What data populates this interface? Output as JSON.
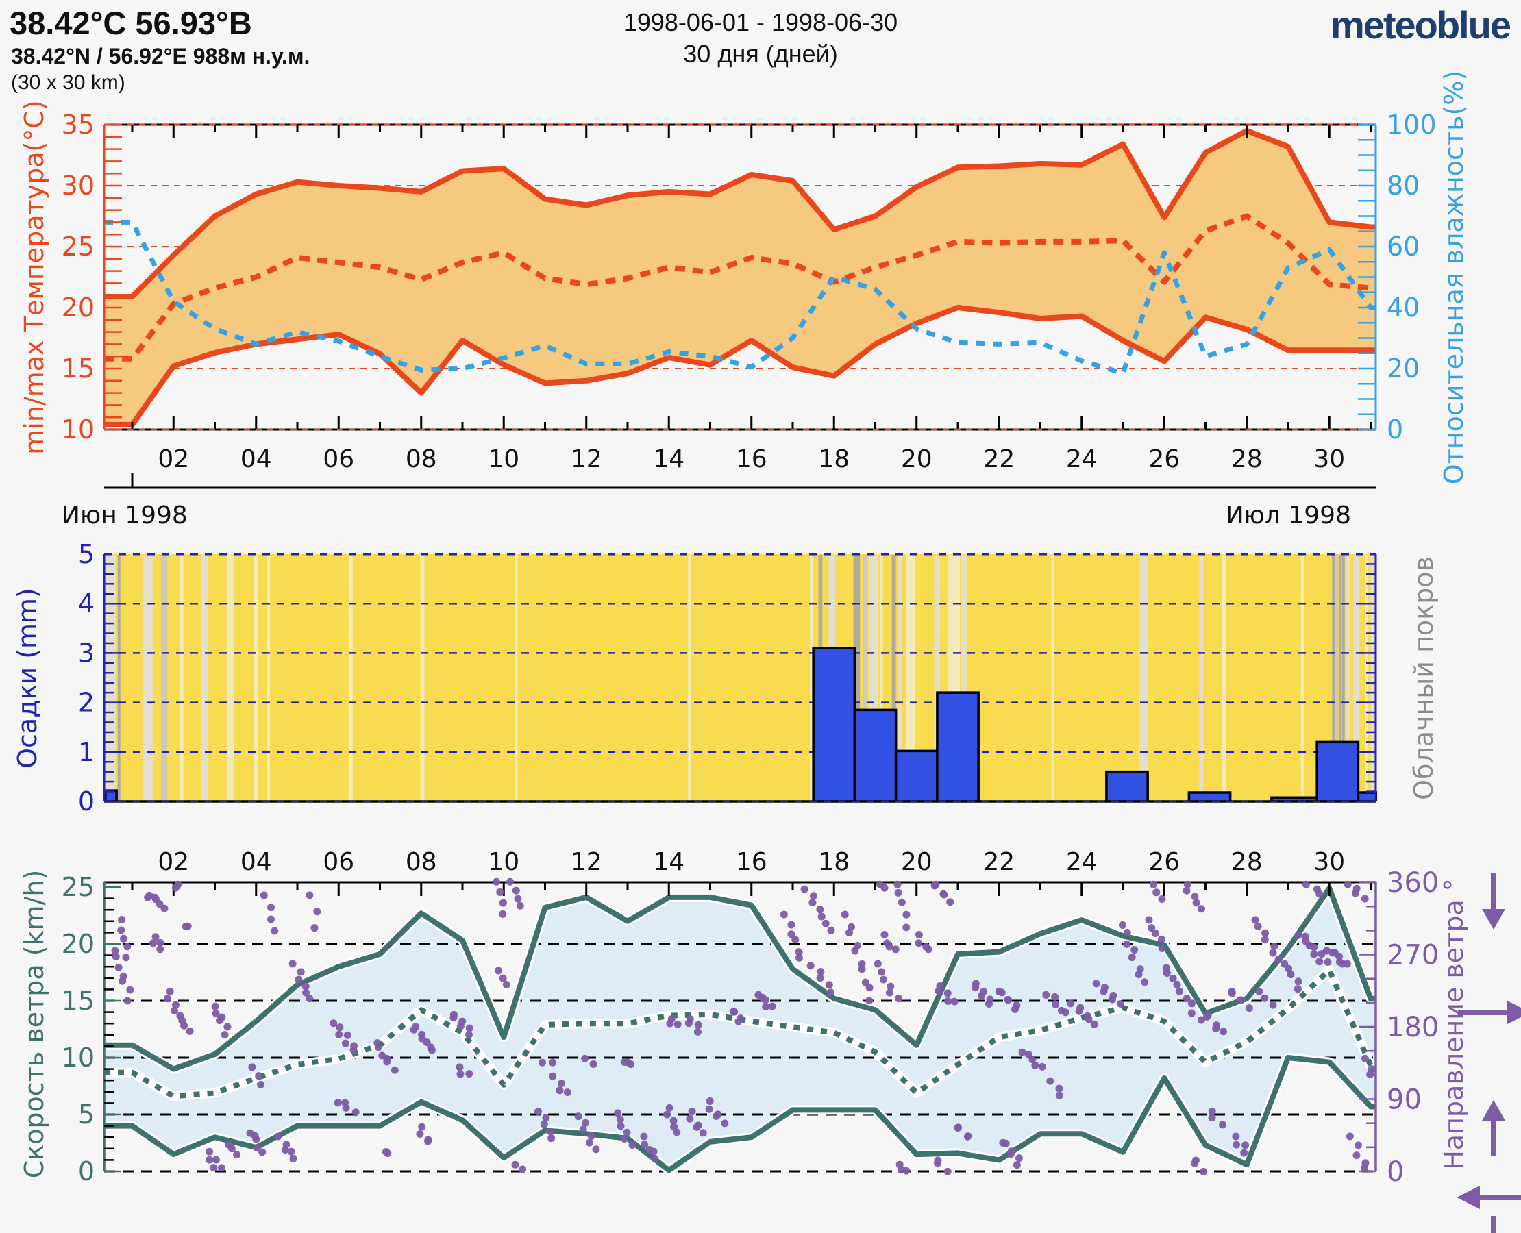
{
  "header": {
    "title": "38.42°C 56.93°B",
    "subtitle": "38.42°N / 56.92°E   988м н.у.м.",
    "grid_note": "(30 x 30 km)",
    "date_range": "1998-06-01 - 1998-06-30",
    "duration": "30 дня (дней)",
    "logo_text": "meteoblue",
    "logo_color": "#1f3e70"
  },
  "axis": {
    "day_labels": [
      "02",
      "04",
      "06",
      "08",
      "10",
      "12",
      "14",
      "16",
      "18",
      "20",
      "22",
      "24",
      "26",
      "28",
      "30"
    ],
    "month_left": "Июн 1998",
    "month_right": "Июл 1998"
  },
  "chart_data": [
    {
      "type": "area",
      "name": "temperature-humidity",
      "ylabel_left": "min/max Температура(°C)",
      "ylabel_right": "Относительная влажность(%)",
      "ylim_left": [
        10,
        35
      ],
      "ylim_right": [
        0,
        100
      ],
      "yticks_left": [
        35,
        30,
        25,
        20,
        15,
        10
      ],
      "yticks_right": [
        100,
        80,
        60,
        40,
        20,
        0
      ],
      "gridlines_left": [
        30,
        25,
        20,
        15
      ],
      "band_fill": "#f6c981",
      "temp_color": "#e8481c",
      "humidity_color": "#35a1e6",
      "days": [
        1,
        2,
        3,
        4,
        5,
        6,
        7,
        8,
        9,
        10,
        11,
        12,
        13,
        14,
        15,
        16,
        17,
        18,
        19,
        20,
        21,
        22,
        23,
        24,
        25,
        26,
        27,
        28,
        29,
        30,
        31
      ],
      "series": [
        {
          "name": "temp-max",
          "style": "solid",
          "axis": "left",
          "values": [
            20.9,
            24.3,
            27.5,
            29.3,
            30.3,
            30.0,
            29.8,
            29.5,
            31.2,
            31.4,
            28.9,
            28.4,
            29.2,
            29.5,
            29.3,
            30.9,
            30.4,
            26.4,
            27.5,
            29.9,
            31.5,
            31.6,
            31.8,
            31.7,
            33.4,
            27.4,
            32.7,
            34.5,
            33.2,
            27.0,
            26.6
          ]
        },
        {
          "name": "temp-mean",
          "style": "dashed",
          "axis": "left",
          "values": [
            15.8,
            20.3,
            21.6,
            22.5,
            24.1,
            23.7,
            23.3,
            22.3,
            23.7,
            24.5,
            22.4,
            21.9,
            22.4,
            23.3,
            22.9,
            24.1,
            23.6,
            22.1,
            23.3,
            24.3,
            25.4,
            25.3,
            25.4,
            25.4,
            25.5,
            22.1,
            26.3,
            27.5,
            25.3,
            21.9,
            21.6
          ]
        },
        {
          "name": "temp-min",
          "style": "solid",
          "axis": "left",
          "values": [
            10.4,
            15.2,
            16.3,
            17.0,
            17.4,
            17.8,
            16.2,
            13.0,
            17.3,
            15.3,
            13.8,
            14.0,
            14.6,
            15.9,
            15.3,
            17.3,
            15.1,
            14.4,
            17.0,
            18.7,
            20.0,
            19.6,
            19.1,
            19.3,
            17.3,
            15.6,
            19.2,
            18.2,
            16.5,
            16.5,
            16.5
          ]
        },
        {
          "name": "relative-humidity",
          "style": "dashed",
          "axis": "right",
          "values": [
            68,
            42,
            33,
            28,
            32,
            29,
            24,
            19.5,
            20,
            23.5,
            27.5,
            21.5,
            21.5,
            25.5,
            24,
            20.5,
            30,
            50,
            46,
            33,
            28.5,
            28,
            28.5,
            22.5,
            18.5,
            58,
            24,
            28,
            53,
            59,
            40
          ]
        }
      ]
    },
    {
      "type": "bar",
      "name": "precipitation-cloudcover",
      "ylabel_left": "Осадки (mm)",
      "ylabel_right": "Облачный покров",
      "ylim": [
        0,
        5
      ],
      "yticks_left": [
        5,
        4,
        3,
        2,
        1,
        0
      ],
      "background": "#f8db4f",
      "bar_color": "#3352e4",
      "axis_color": "#2222b2",
      "cloud_label_color": "#8c8c8c",
      "bars": [
        [
          0.35,
          0.62,
          0.22
        ],
        [
          17.5,
          18.5,
          3.1
        ],
        [
          18.5,
          19.5,
          1.85
        ],
        [
          19.5,
          20.5,
          1.02
        ],
        [
          20.5,
          21.5,
          2.2
        ],
        [
          24.6,
          25.6,
          0.6
        ],
        [
          26.6,
          27.6,
          0.18
        ],
        [
          28.6,
          29.7,
          0.08
        ],
        [
          29.7,
          30.7,
          1.2
        ],
        [
          30.7,
          31.13,
          0.18
        ]
      ],
      "cloud_shades": {
        "dark": "#a6a6a6",
        "med": "#c9c9c9",
        "light": "#dfdfdf",
        "pale": "#f2ebc4"
      },
      "cloud_stripes": [
        [
          0.45,
          0.3,
          "light"
        ],
        [
          0.68,
          0.06,
          "dark"
        ],
        [
          1.37,
          0.25,
          "light"
        ],
        [
          1.77,
          0.15,
          "med"
        ],
        [
          2.2,
          0.08,
          "pale"
        ],
        [
          2.76,
          0.16,
          "light"
        ],
        [
          3.37,
          0.17,
          "pale"
        ],
        [
          4.0,
          0.1,
          "pale"
        ],
        [
          4.3,
          0.08,
          "pale"
        ],
        [
          6.3,
          0.08,
          "pale"
        ],
        [
          8.03,
          0.1,
          "pale"
        ],
        [
          10.3,
          0.07,
          "pale"
        ],
        [
          14.5,
          0.07,
          "pale"
        ],
        [
          17.45,
          0.06,
          "pale"
        ],
        [
          17.67,
          0.1,
          "dark"
        ],
        [
          17.95,
          0.16,
          "light"
        ],
        [
          18.55,
          0.16,
          "dark"
        ],
        [
          18.75,
          0.1,
          "med"
        ],
        [
          18.95,
          0.22,
          "light"
        ],
        [
          19.15,
          0.06,
          "pale"
        ],
        [
          19.45,
          0.1,
          "dark"
        ],
        [
          19.6,
          0.08,
          "light"
        ],
        [
          19.85,
          0.22,
          "pale"
        ],
        [
          20.5,
          0.14,
          "light"
        ],
        [
          20.9,
          0.3,
          "pale"
        ],
        [
          21.15,
          0.12,
          "light"
        ],
        [
          23.3,
          0.05,
          "pale"
        ],
        [
          25.5,
          0.22,
          "light"
        ],
        [
          26.9,
          0.1,
          "light"
        ],
        [
          27.45,
          0.1,
          "pale"
        ],
        [
          29.35,
          0.08,
          "pale"
        ],
        [
          30.1,
          0.04,
          "dark"
        ],
        [
          30.18,
          0.05,
          "med"
        ],
        [
          30.26,
          0.05,
          "dark"
        ],
        [
          30.34,
          0.04,
          "dark"
        ],
        [
          30.45,
          0.06,
          "light"
        ],
        [
          30.65,
          0.12,
          "light"
        ],
        [
          30.9,
          0.08,
          "pale"
        ],
        [
          31.05,
          0.1,
          "light"
        ]
      ]
    },
    {
      "type": "line",
      "name": "wind-speed-direction",
      "ylabel_left": "Скорость ветра (km/h)",
      "ylabel_right": "Направление ветра °",
      "ylim_left": [
        0,
        25
      ],
      "ylim_right": [
        0,
        360
      ],
      "yticks_left": [
        25,
        20,
        15,
        10,
        5,
        0
      ],
      "yticks_right": [
        360,
        270,
        180,
        90,
        0
      ],
      "band_fill": "#ddecf5",
      "wind_color": "#3e726f",
      "direction_color": "#7d5ba6",
      "days": [
        1,
        2,
        3,
        4,
        5,
        6,
        7,
        8,
        9,
        10,
        11,
        12,
        13,
        14,
        15,
        16,
        17,
        18,
        19,
        20,
        21,
        22,
        23,
        24,
        25,
        26,
        27,
        28,
        29,
        30,
        31
      ],
      "series": [
        {
          "name": "wind-max",
          "style": "solid",
          "values": [
            11.1,
            9.0,
            10.3,
            13.2,
            16.4,
            18.0,
            19.1,
            22.7,
            20.3,
            11.8,
            23.2,
            24.1,
            22.0,
            24.1,
            24.1,
            23.4,
            17.8,
            15.2,
            14.2,
            11.1,
            19.1,
            19.3,
            20.9,
            22.1,
            20.7,
            19.9,
            13.9,
            15.2,
            19.6,
            24.9,
            15.2
          ]
        },
        {
          "name": "wind-mean",
          "style": "dotted",
          "values": [
            8.7,
            6.6,
            6.9,
            8.2,
            9.4,
            9.9,
            11.1,
            14.2,
            12.2,
            7.6,
            12.9,
            13.0,
            13.0,
            13.7,
            13.8,
            13.2,
            12.7,
            12.2,
            10.5,
            6.9,
            9.4,
            11.8,
            12.4,
            13.5,
            14.4,
            13.2,
            9.6,
            11.4,
            14.3,
            17.7,
            9.3
          ]
        },
        {
          "name": "wind-min",
          "style": "solid",
          "values": [
            4.0,
            1.5,
            3.0,
            2.1,
            4.0,
            4.0,
            4.0,
            6.1,
            4.5,
            1.2,
            3.6,
            3.3,
            2.9,
            0.1,
            2.6,
            3.0,
            5.4,
            5.4,
            5.4,
            1.5,
            1.6,
            1.0,
            3.3,
            3.3,
            1.7,
            8.2,
            2.3,
            0.6,
            10.0,
            9.6,
            5.7
          ]
        }
      ],
      "direction_arrows": [
        "down",
        "right",
        "up",
        "left",
        "down"
      ],
      "direction_segments": [
        [
          0.55,
          0.95,
          275,
          215,
          7
        ],
        [
          0.7,
          0.9,
          312,
          268,
          5
        ],
        [
          1.35,
          1.75,
          346,
          330,
          6
        ],
        [
          1.5,
          1.7,
          291,
          278,
          4
        ],
        [
          1.85,
          2.35,
          225,
          172,
          8
        ],
        [
          2.05,
          2.12,
          359,
          352,
          2
        ],
        [
          2.3,
          2.36,
          307,
          304,
          2
        ],
        [
          2.85,
          3.1,
          22,
          2,
          5
        ],
        [
          3.0,
          3.3,
          206,
          172,
          6
        ],
        [
          3.35,
          3.5,
          33,
          19,
          3
        ],
        [
          3.9,
          4.1,
          50,
          25,
          5
        ],
        [
          3.95,
          4.12,
          128,
          110,
          3
        ],
        [
          4.25,
          4.45,
          344,
          302,
          4
        ],
        [
          4.6,
          4.9,
          41,
          16,
          5
        ],
        [
          4.95,
          5.3,
          259,
          215,
          6
        ],
        [
          5.35,
          5.48,
          344,
          302,
          3
        ],
        [
          5.9,
          6.4,
          184,
          150,
          7
        ],
        [
          6.0,
          6.35,
          88,
          75,
          4
        ],
        [
          6.9,
          7.3,
          159,
          128,
          6
        ],
        [
          7.1,
          7.22,
          26,
          20,
          2
        ],
        [
          7.8,
          8.3,
          181,
          150,
          7
        ],
        [
          7.95,
          8.2,
          53,
          35,
          4
        ],
        [
          8.75,
          9.2,
          196,
          172,
          6
        ],
        [
          8.9,
          9.1,
          128,
          119,
          3
        ],
        [
          9.85,
          10.02,
          360,
          318,
          4
        ],
        [
          9.9,
          10.05,
          252,
          234,
          3
        ],
        [
          10.2,
          10.42,
          360,
          333,
          4
        ],
        [
          10.33,
          10.42,
          8,
          3,
          2
        ],
        [
          10.9,
          11.15,
          72,
          41,
          5
        ],
        [
          11.0,
          11.12,
          138,
          133,
          2
        ],
        [
          11.25,
          11.5,
          116,
          97,
          4
        ],
        [
          11.85,
          12.2,
          66,
          25,
          6
        ],
        [
          12.0,
          12.12,
          140,
          136,
          2
        ],
        [
          12.75,
          13.05,
          75,
          35,
          6
        ],
        [
          12.9,
          13.1,
          137,
          131,
          3
        ],
        [
          13.35,
          13.7,
          41,
          16,
          5
        ],
        [
          13.95,
          14.2,
          81,
          50,
          5
        ],
        [
          14.0,
          14.17,
          190,
          181,
          3
        ],
        [
          14.45,
          14.75,
          190,
          176,
          4
        ],
        [
          14.5,
          14.8,
          72,
          47,
          5
        ],
        [
          14.95,
          15.3,
          85,
          60,
          5
        ],
        [
          15.55,
          15.75,
          200,
          188,
          4
        ],
        [
          16.2,
          16.45,
          221,
          203,
          5
        ],
        [
          16.85,
          17.2,
          318,
          265,
          6
        ],
        [
          17.35,
          17.9,
          349,
          302,
          7
        ],
        [
          17.5,
          17.95,
          256,
          221,
          5
        ],
        [
          18.3,
          18.9,
          318,
          215,
          10
        ],
        [
          19.05,
          19.5,
          259,
          215,
          6
        ],
        [
          19.2,
          19.45,
          293,
          274,
          4
        ],
        [
          19.1,
          19.22,
          359,
          352,
          2
        ],
        [
          19.5,
          19.8,
          359,
          306,
          5
        ],
        [
          19.55,
          19.75,
          8,
          1,
          3
        ],
        [
          20.0,
          20.3,
          293,
          274,
          4
        ],
        [
          20.4,
          20.8,
          359,
          337,
          5
        ],
        [
          20.45,
          20.7,
          14,
          2,
          3
        ],
        [
          20.5,
          20.9,
          231,
          209,
          5
        ],
        [
          20.95,
          21.3,
          57,
          41,
          4
        ],
        [
          21.4,
          21.8,
          234,
          209,
          6
        ],
        [
          22.0,
          22.45,
          225,
          203,
          6
        ],
        [
          22.1,
          22.5,
          38,
          10,
          6
        ],
        [
          22.6,
          23.0,
          150,
          128,
          5
        ],
        [
          23.2,
          23.6,
          221,
          196,
          5
        ],
        [
          23.3,
          23.5,
          110,
          97,
          3
        ],
        [
          23.8,
          24.3,
          209,
          184,
          6
        ],
        [
          24.4,
          24.9,
          234,
          209,
          6
        ],
        [
          25.0,
          25.5,
          306,
          234,
          8
        ],
        [
          25.6,
          26.0,
          315,
          277,
          5
        ],
        [
          25.7,
          25.95,
          359,
          341,
          3
        ],
        [
          26.0,
          26.5,
          253,
          215,
          6
        ],
        [
          26.5,
          26.9,
          359,
          327,
          5
        ],
        [
          26.6,
          26.85,
          209,
          190,
          3
        ],
        [
          26.7,
          26.9,
          14,
          2,
          3
        ],
        [
          27.0,
          27.4,
          196,
          172,
          5
        ],
        [
          27.1,
          27.35,
          72,
          57,
          3
        ],
        [
          27.6,
          28.0,
          225,
          206,
          5
        ],
        [
          27.7,
          28.0,
          41,
          25,
          4
        ],
        [
          28.2,
          28.7,
          315,
          274,
          6
        ],
        [
          28.3,
          28.6,
          225,
          209,
          3
        ],
        [
          28.8,
          29.3,
          265,
          228,
          6
        ],
        [
          29.3,
          29.9,
          296,
          259,
          9
        ],
        [
          29.5,
          29.8,
          359,
          344,
          3
        ],
        [
          30.0,
          30.4,
          277,
          256,
          7
        ],
        [
          30.5,
          30.8,
          359,
          337,
          4
        ],
        [
          30.55,
          30.9,
          41,
          3,
          5
        ],
        [
          30.9,
          31.05,
          140,
          120,
          3
        ]
      ]
    }
  ]
}
